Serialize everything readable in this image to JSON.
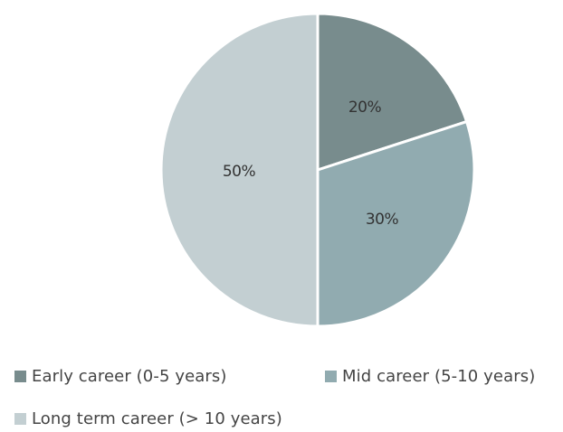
{
  "chart_data": {
    "type": "pie",
    "title": "",
    "categories": [
      "Early career (0-5 years)",
      "Mid career (5-10 years)",
      "Long term career (> 10 years)"
    ],
    "values": [
      20,
      30,
      50
    ],
    "value_labels": [
      "20%",
      "30%",
      "50%"
    ],
    "colors": [
      "#788c8d",
      "#91abb0",
      "#c3cfd2"
    ],
    "start_angle": "12 o'clock",
    "direction": "clockwise",
    "slice_border_color": "#ffffff",
    "legend_position": "bottom"
  }
}
